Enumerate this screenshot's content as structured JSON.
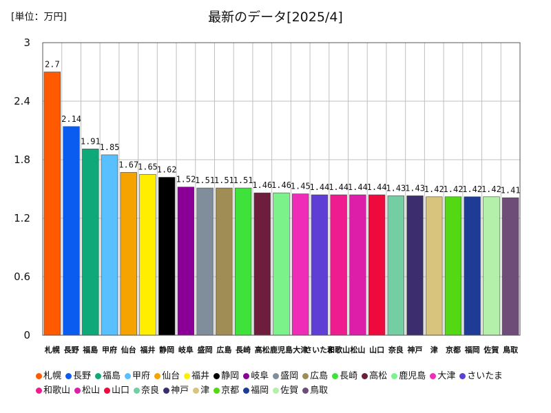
{
  "unit_label": "[単位：万円]",
  "chart_data": {
    "type": "bar",
    "title": "最新のデータ[2025/4]",
    "xlabel": "",
    "ylabel": "",
    "ylim": [
      0,
      3
    ],
    "yticks": [
      "0",
      "0.6",
      "1.2",
      "1.8",
      "2.4",
      "3"
    ],
    "ytick_values": [
      0,
      0.6,
      1.2,
      1.8,
      2.4,
      3
    ],
    "grid": true,
    "legend_position": "bottom",
    "categories": [
      "札幌",
      "長野",
      "福島",
      "甲府",
      "仙台",
      "福井",
      "静岡",
      "岐阜",
      "盛岡",
      "広島",
      "長崎",
      "高松",
      "鹿児島",
      "大津",
      "さいたま",
      "和歌山",
      "松山",
      "山口",
      "奈良",
      "神戸",
      "津",
      "京都",
      "福岡",
      "佐賀",
      "鳥取"
    ],
    "values": [
      2.7,
      2.14,
      1.91,
      1.85,
      1.67,
      1.65,
      1.62,
      1.52,
      1.51,
      1.51,
      1.51,
      1.46,
      1.46,
      1.45,
      1.44,
      1.44,
      1.44,
      1.44,
      1.43,
      1.43,
      1.42,
      1.42,
      1.42,
      1.42,
      1.41
    ],
    "value_labels": [
      "2.7",
      "2.14",
      "1.91",
      "1.85",
      "1.67",
      "1.65",
      "1.62",
      "1.52",
      "1.51",
      "1.51",
      "1.51",
      "1.46",
      "1.46",
      "1.45",
      "1.44",
      "1.44",
      "1.44",
      "1.44",
      "1.43",
      "1.43",
      "1.42",
      "1.42",
      "1.42",
      "1.42",
      "1.41"
    ],
    "colors": [
      "#ff5a00",
      "#0a5cf0",
      "#0fa878",
      "#58c0ff",
      "#f5a300",
      "#ffee00",
      "#000000",
      "#8a0096",
      "#7f8e9a",
      "#a08c55",
      "#3fe23a",
      "#6e1e3c",
      "#7cf28a",
      "#ee2cb8",
      "#5f3ed6",
      "#ee1c8e",
      "#dc1ea8",
      "#ee0a3c",
      "#73cfa3",
      "#3c2e6e",
      "#d8c47c",
      "#55d814",
      "#1e3c96",
      "#b4f0aa",
      "#6e4e78"
    ]
  }
}
